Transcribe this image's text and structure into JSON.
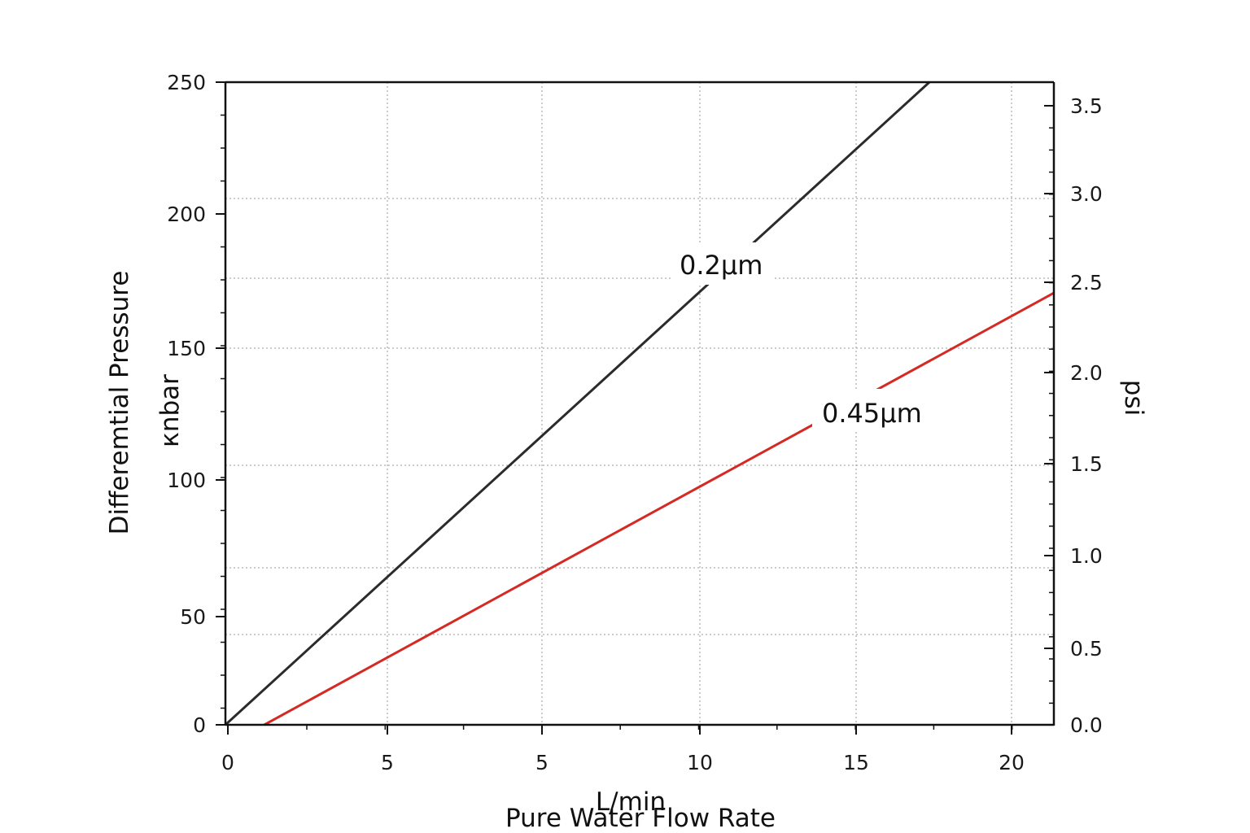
{
  "chart_data": {
    "type": "line",
    "title": "",
    "xlabel": "Pure Water Flow Rate",
    "x_unit": "L/min",
    "ylabel": "Differemtial Pressure",
    "y_unit": "кnbar",
    "y2_unit": "psi",
    "x_tick_labels": [
      "0",
      "5",
      "5",
      "10",
      "15",
      "20"
    ],
    "xlim": [
      0,
      21.3
    ],
    "ylim": [
      0,
      250
    ],
    "y_tick_labels": [
      "0",
      "50",
      "100",
      "150",
      "200",
      "250"
    ],
    "y2lim": [
      0,
      3.62
    ],
    "y2_tick_labels": [
      "0.0",
      "0.5",
      "1.0",
      "1.5",
      "2.0",
      "2.5",
      "3.0",
      "3.5"
    ],
    "grid": true,
    "series": [
      {
        "name": "0.2μm",
        "color": "#2b2b2b",
        "points": [
          [
            0,
            0
          ],
          [
            18.1,
            250
          ]
        ]
      },
      {
        "name": "0.45μm",
        "color": "#d42a24",
        "points": [
          [
            1.0,
            0
          ],
          [
            21.3,
            168
          ]
        ]
      }
    ]
  }
}
